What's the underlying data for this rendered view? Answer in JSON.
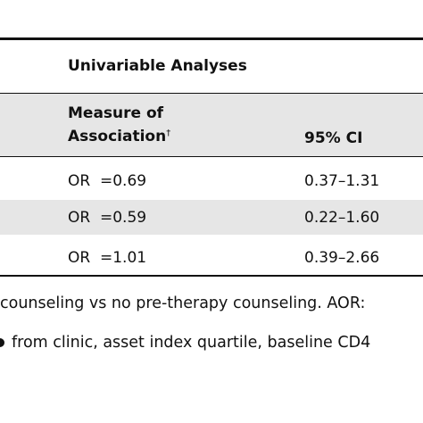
{
  "table": {
    "group_header": "Univariable Analyses",
    "col_measure_line1": "Measure of",
    "col_measure_line2": "Association",
    "col_measure_mark": "†",
    "col_ci": "95% CI",
    "rows": [
      {
        "measure": "OR  =0.69",
        "ci": "0.37–1.31"
      },
      {
        "measure": "OR  =0.59",
        "ci": "0.22–1.60"
      },
      {
        "measure": "OR  =1.01",
        "ci": "0.39–2.66"
      }
    ]
  },
  "footnotes": {
    "line1": "counseling vs no pre-therapy counseling. AOR:",
    "line2": "from clinic, asset index quartile, baseline CD4"
  }
}
